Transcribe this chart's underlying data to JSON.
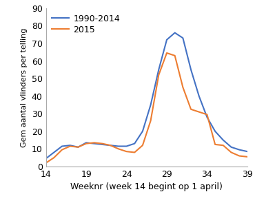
{
  "weeks": [
    14,
    15,
    16,
    17,
    18,
    19,
    20,
    21,
    22,
    23,
    24,
    25,
    26,
    27,
    28,
    29,
    30,
    31,
    32,
    33,
    34,
    35,
    36,
    37,
    38,
    39
  ],
  "blue_1990_2014": [
    4.5,
    8.0,
    11.5,
    12.0,
    11.0,
    13.5,
    13.0,
    12.5,
    12.0,
    11.5,
    11.5,
    13.0,
    20.0,
    35.0,
    55.0,
    72.0,
    76.0,
    73.0,
    55.0,
    40.0,
    28.0,
    20.0,
    15.0,
    11.0,
    9.5,
    8.5
  ],
  "orange_2015": [
    2.0,
    5.0,
    9.5,
    11.5,
    11.0,
    13.0,
    13.5,
    13.0,
    12.0,
    10.0,
    8.5,
    8.0,
    12.0,
    26.0,
    52.0,
    64.5,
    63.0,
    45.0,
    32.5,
    31.0,
    29.5,
    12.5,
    12.0,
    8.0,
    6.0,
    5.5
  ],
  "blue_color": "#4472C4",
  "orange_color": "#ED7D31",
  "blue_label": "1990-2014",
  "orange_label": "2015",
  "xlabel": "Weeknr (week 14 begint op 1 april)",
  "ylabel": "Gem aantal vlinders per telling",
  "xlim": [
    14,
    39
  ],
  "ylim": [
    0,
    90
  ],
  "yticks": [
    0,
    10,
    20,
    30,
    40,
    50,
    60,
    70,
    80,
    90
  ],
  "xticks": [
    14,
    19,
    24,
    29,
    34,
    39
  ],
  "background_color": "#ffffff",
  "spine_color": "#aaaaaa",
  "xlabel_fontsize": 9,
  "ylabel_fontsize": 8,
  "tick_fontsize": 9,
  "legend_fontsize": 9,
  "linewidth": 1.5
}
